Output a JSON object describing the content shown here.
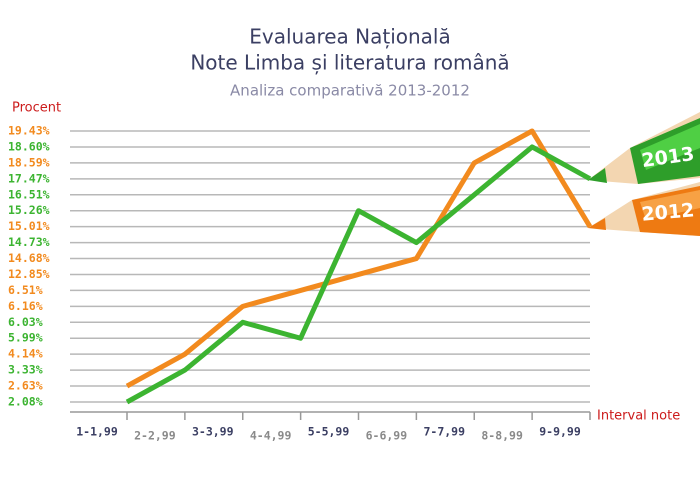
{
  "chart_data": {
    "type": "line",
    "title": "Evaluarea Națională",
    "subtitle": "Note Limba și literatura română",
    "subtitle2": "Analiza comparativă 2013-2012",
    "ylabel": "Procent",
    "xlabel": "Interval note",
    "categories": [
      "1-1,99",
      "2-2,99",
      "3-3,99",
      "4-4,99",
      "5-5,99",
      "6-6,99",
      "7-7,99",
      "8-8,99",
      "9-9,99"
    ],
    "series": [
      {
        "name": "2013",
        "color": "#3cb431",
        "values": [
          2.08,
          3.33,
          6.03,
          5.99,
          15.26,
          14.73,
          16.51,
          18.6,
          17.47
        ]
      },
      {
        "name": "2012",
        "color": "#f28a1e",
        "values": [
          2.63,
          4.14,
          6.16,
          6.51,
          12.85,
          14.68,
          18.59,
          19.43,
          15.01
        ]
      }
    ],
    "yticks": [
      {
        "value": 2.08,
        "label": "2.08%"
      },
      {
        "value": 2.63,
        "label": "2.63%"
      },
      {
        "value": 3.33,
        "label": "3.33%"
      },
      {
        "value": 4.14,
        "label": "4.14%"
      },
      {
        "value": 5.99,
        "label": "5.99%"
      },
      {
        "value": 6.03,
        "label": "6.03%"
      },
      {
        "value": 6.16,
        "label": "6.16%"
      },
      {
        "value": 6.51,
        "label": "6.51%"
      },
      {
        "value": 12.85,
        "label": "12.85%"
      },
      {
        "value": 14.68,
        "label": "14.68%"
      },
      {
        "value": 14.73,
        "label": "14.73%"
      },
      {
        "value": 15.01,
        "label": "15.01%"
      },
      {
        "value": 15.26,
        "label": "15.26%"
      },
      {
        "value": 16.51,
        "label": "16.51%"
      },
      {
        "value": 17.47,
        "label": "17.47%"
      },
      {
        "value": 18.59,
        "label": "18.59%"
      },
      {
        "value": 18.6,
        "label": "18.60%"
      },
      {
        "value": 19.43,
        "label": "19.43%"
      }
    ],
    "grid": true
  }
}
